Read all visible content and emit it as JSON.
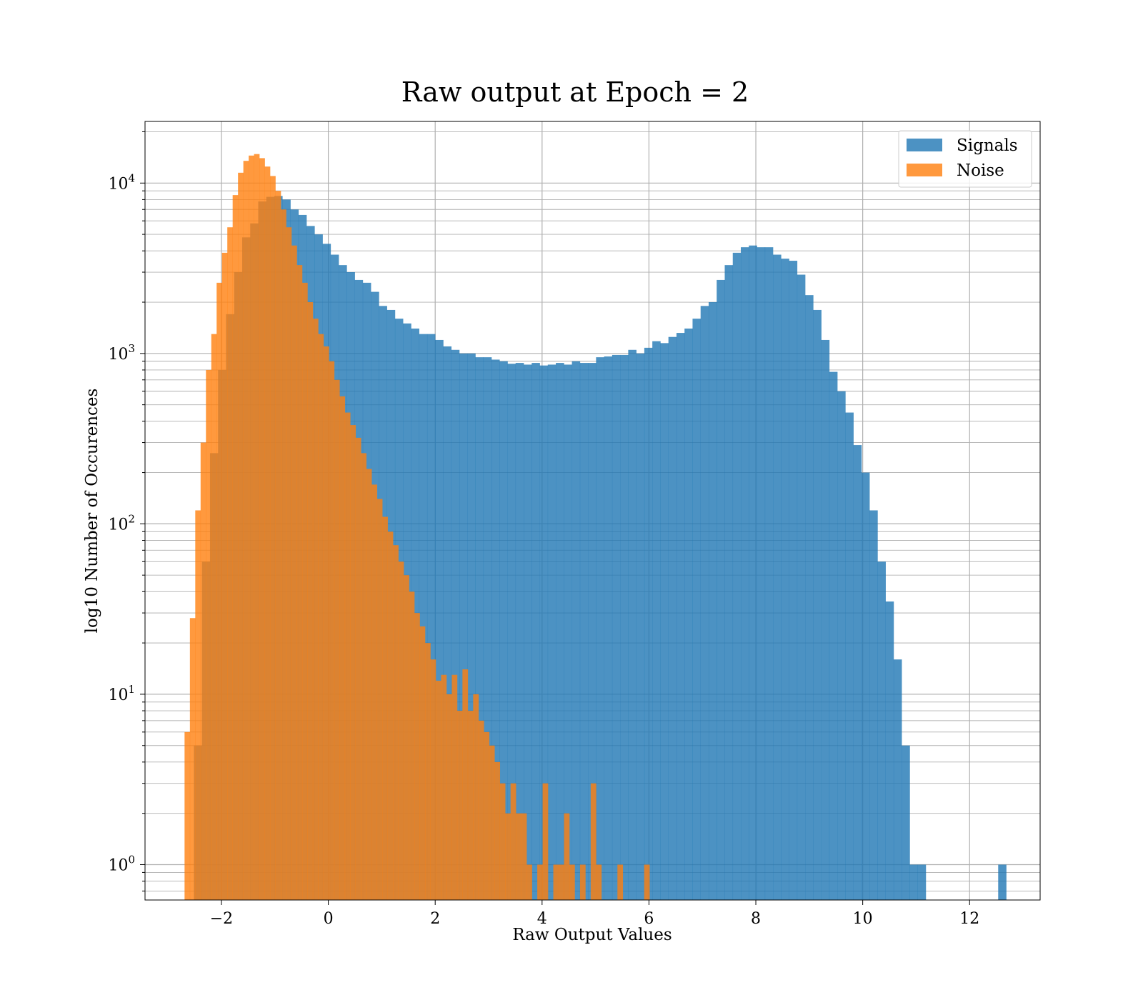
{
  "chart_data": {
    "type": "histogram",
    "title": "Raw output at Epoch = 2",
    "xlabel": "Raw Output Values",
    "ylabel": "log10 Number of Occurences",
    "xlim": [
      -3.43,
      13.32
    ],
    "ylim": [
      0.62,
      23000
    ],
    "yscale": "log",
    "grid": true,
    "legend_position": "top-right",
    "x_ticks": [
      -2,
      0,
      2,
      4,
      6,
      8,
      10,
      12
    ],
    "x_tick_labels": [
      "−2",
      "0",
      "2",
      "4",
      "6",
      "8",
      "10",
      "12"
    ],
    "y_ticks": [
      1,
      10,
      100,
      1000,
      10000
    ],
    "y_tick_labels": [
      {
        "base": "10",
        "exp": "0"
      },
      {
        "base": "10",
        "exp": "1"
      },
      {
        "base": "10",
        "exp": "2"
      },
      {
        "base": "10",
        "exp": "3"
      },
      {
        "base": "10",
        "exp": "4"
      }
    ],
    "series": [
      {
        "name": "Signals",
        "color": "#1f77b4",
        "opacity": 0.8,
        "bin_start": -2.515,
        "bin_width": 0.1505,
        "counts": [
          5,
          60,
          260,
          800,
          1700,
          3000,
          4800,
          5800,
          7800,
          8300,
          8400,
          8000,
          7000,
          6500,
          5600,
          5000,
          4400,
          3800,
          3300,
          3000,
          2700,
          2600,
          2300,
          1900,
          1800,
          1600,
          1500,
          1400,
          1300,
          1300,
          1200,
          1100,
          1050,
          1000,
          1000,
          950,
          950,
          920,
          900,
          870,
          880,
          860,
          880,
          850,
          860,
          880,
          860,
          900,
          880,
          880,
          950,
          960,
          980,
          980,
          1050,
          1000,
          1080,
          1180,
          1150,
          1250,
          1320,
          1400,
          1600,
          1900,
          2000,
          2700,
          3300,
          3900,
          4200,
          4300,
          4200,
          4200,
          3800,
          3600,
          3500,
          2900,
          2200,
          1800,
          1200,
          780,
          600,
          450,
          290,
          200,
          120,
          60,
          35,
          16,
          5,
          1,
          1,
          0,
          0,
          0,
          0,
          0,
          0,
          0,
          0,
          0,
          1
        ]
      },
      {
        "name": "Noise",
        "color": "#ff7f0e",
        "opacity": 0.8,
        "bin_start": -2.69,
        "bin_width": 0.1,
        "counts": [
          6,
          28,
          120,
          300,
          800,
          1300,
          2600,
          3900,
          5500,
          8500,
          11500,
          13500,
          14500,
          14800,
          14000,
          12500,
          11000,
          9000,
          7000,
          5500,
          4300,
          3300,
          2600,
          2000,
          1600,
          1300,
          1100,
          900,
          700,
          560,
          450,
          380,
          320,
          260,
          210,
          170,
          140,
          110,
          90,
          75,
          60,
          50,
          40,
          30,
          25,
          20,
          16,
          12,
          13,
          10,
          13,
          8,
          14,
          8,
          10,
          7,
          6,
          5,
          4,
          3,
          2,
          3,
          2,
          2,
          1,
          0,
          1,
          3,
          0,
          1,
          1,
          2,
          1,
          0,
          1,
          0,
          3,
          1,
          0,
          0,
          0,
          1,
          0,
          0,
          0,
          0,
          1
        ]
      }
    ]
  }
}
